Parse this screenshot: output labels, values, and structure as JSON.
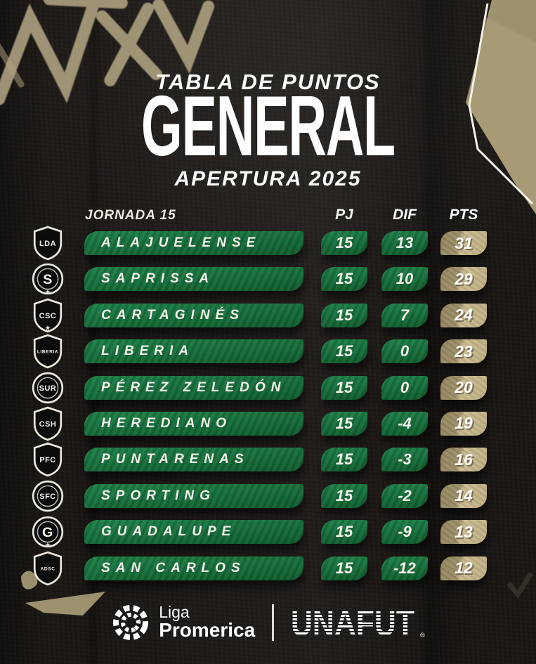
{
  "header": {
    "eyebrow": "TABLA DE PUNTOS",
    "title": "GENERAL",
    "subtitle": "APERTURA 2025"
  },
  "table": {
    "jornada_label": "JORNADA 15",
    "columns": [
      "PJ",
      "DIF",
      "PTS"
    ],
    "rows": [
      {
        "team": "ALAJUELENSE",
        "pj": "15",
        "dif": "13",
        "pts": "31",
        "badge": {
          "shape": "shield",
          "text": "LDA",
          "star": false
        }
      },
      {
        "team": "SAPRISSA",
        "pj": "15",
        "dif": "10",
        "pts": "29",
        "badge": {
          "shape": "circle",
          "text": "S",
          "star": false
        }
      },
      {
        "team": "CARTAGINÉS",
        "pj": "15",
        "dif": "7",
        "pts": "24",
        "badge": {
          "shape": "shield",
          "text": "CSC",
          "star": true
        }
      },
      {
        "team": "LIBERIA",
        "pj": "15",
        "dif": "0",
        "pts": "23",
        "badge": {
          "shape": "shield",
          "text": "LIBERIA",
          "star": true
        }
      },
      {
        "team": "PÉREZ ZELEDÓN",
        "pj": "15",
        "dif": "0",
        "pts": "20",
        "badge": {
          "shape": "circle",
          "text": "SUR",
          "star": false
        }
      },
      {
        "team": "HEREDIANO",
        "pj": "15",
        "dif": "-4",
        "pts": "19",
        "badge": {
          "shape": "shield",
          "text": "CSH",
          "star": false
        }
      },
      {
        "team": "PUNTARENAS",
        "pj": "15",
        "dif": "-3",
        "pts": "16",
        "badge": {
          "shape": "shield",
          "text": "PFC",
          "star": false
        }
      },
      {
        "team": "SPORTING",
        "pj": "15",
        "dif": "-2",
        "pts": "14",
        "badge": {
          "shape": "circle",
          "text": "SFC",
          "star": false
        }
      },
      {
        "team": "GUADALUPE",
        "pj": "15",
        "dif": "-9",
        "pts": "13",
        "badge": {
          "shape": "circle",
          "text": "G",
          "star": false
        }
      },
      {
        "team": "SAN CARLOS",
        "pj": "15",
        "dif": "-12",
        "pts": "12",
        "badge": {
          "shape": "shield",
          "text": "ADSC",
          "star": true
        }
      }
    ]
  },
  "footer": {
    "league_name_line1": "Liga",
    "league_name_line2": "Promerica",
    "federation": "UNAFUT",
    "registered": "®"
  },
  "colors": {
    "green": "#177a42",
    "green_dark": "#0f5c2e",
    "gold_light": "#c9b98d",
    "gold_dark": "#9a8c66",
    "tan_graffiti": "#b1a483",
    "corner_tan": "#a79a75",
    "background": "#191512",
    "text": "#f4f1ea"
  }
}
